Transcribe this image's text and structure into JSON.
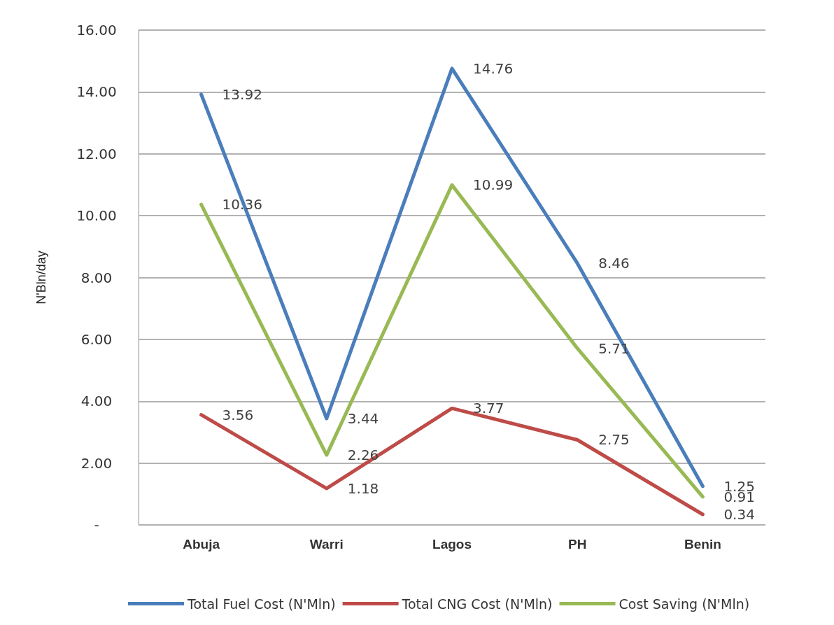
{
  "chart_data": {
    "type": "line",
    "ylabel": "N'Bln/day",
    "categories": [
      "Abuja",
      "Warri",
      "Lagos",
      "PH",
      "Benin"
    ],
    "series": [
      {
        "name": "Total Fuel Cost (N'Mln)",
        "color": "#4a7ebb",
        "values": [
          13.92,
          3.44,
          14.76,
          8.46,
          1.25
        ]
      },
      {
        "name": "Total CNG Cost (N'Mln)",
        "color": "#be4b48",
        "values": [
          3.56,
          1.18,
          3.77,
          2.75,
          0.34
        ]
      },
      {
        "name": "Cost Saving (N'Mln)",
        "color": "#98b954",
        "values": [
          10.36,
          2.26,
          10.99,
          5.71,
          0.91
        ]
      }
    ],
    "ylim": [
      0,
      16
    ],
    "yticks": [
      {
        "value": 0,
        "label": "-"
      },
      {
        "value": 2,
        "label": "2.00"
      },
      {
        "value": 4,
        "label": "4.00"
      },
      {
        "value": 6,
        "label": "6.00"
      },
      {
        "value": 8,
        "label": "8.00"
      },
      {
        "value": 10,
        "label": "10.00"
      },
      {
        "value": 12,
        "label": "12.00"
      },
      {
        "value": 14,
        "label": "14.00"
      },
      {
        "value": 16,
        "label": "16.00"
      }
    ],
    "grid": "y",
    "legend": "bottom",
    "marker": "none",
    "line_style": "solid",
    "data_labels": true
  }
}
